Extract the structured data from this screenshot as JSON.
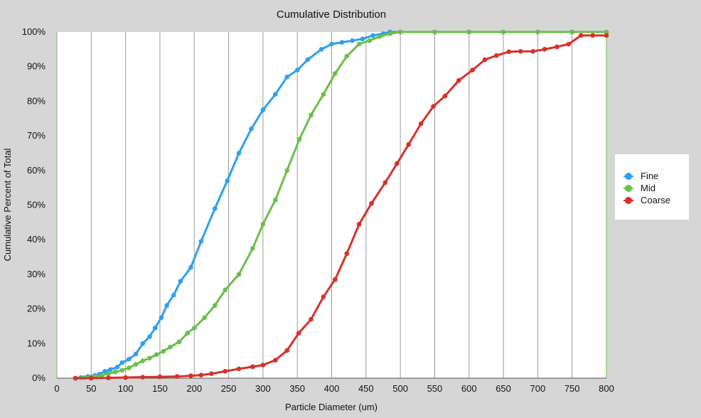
{
  "chart_data": {
    "type": "line",
    "title": "Cumulative Distribution",
    "xlabel": "Particle Diameter (um)",
    "ylabel": "Cumulative Percent of Total",
    "xlim": [
      0,
      800
    ],
    "ylim": [
      0,
      100
    ],
    "x_ticks": [
      0,
      50,
      100,
      150,
      200,
      250,
      300,
      350,
      400,
      450,
      500,
      550,
      600,
      650,
      700,
      750,
      800
    ],
    "y_ticks": [
      "0%",
      "10%",
      "20%",
      "30%",
      "40%",
      "50%",
      "60%",
      "70%",
      "80%",
      "90%",
      "100%"
    ],
    "grid": "vertical",
    "legend_position": "right",
    "series": [
      {
        "name": "Fine",
        "color": "#2f9ff0",
        "points": [
          [
            27,
            0
          ],
          [
            35,
            0.2
          ],
          [
            45,
            0.5
          ],
          [
            55,
            0.8
          ],
          [
            62,
            1.2
          ],
          [
            70,
            2
          ],
          [
            78,
            2.5
          ],
          [
            88,
            3.2
          ],
          [
            95,
            4.5
          ],
          [
            105,
            5.5
          ],
          [
            115,
            7
          ],
          [
            125,
            10
          ],
          [
            135,
            12
          ],
          [
            143,
            14.5
          ],
          [
            152,
            17.5
          ],
          [
            160,
            21
          ],
          [
            170,
            24
          ],
          [
            180,
            28
          ],
          [
            195,
            32
          ],
          [
            210,
            39.5
          ],
          [
            230,
            49
          ],
          [
            248,
            57
          ],
          [
            265,
            65
          ],
          [
            283,
            72
          ],
          [
            300,
            77.5
          ],
          [
            318,
            82
          ],
          [
            335,
            87
          ],
          [
            350,
            89
          ],
          [
            365,
            92
          ],
          [
            385,
            95
          ],
          [
            400,
            96.5
          ],
          [
            415,
            97
          ],
          [
            430,
            97.5
          ],
          [
            445,
            98
          ],
          [
            460,
            99
          ],
          [
            475,
            99.5
          ],
          [
            485,
            100
          ],
          [
            500,
            100
          ],
          [
            550,
            100
          ],
          [
            600,
            100
          ],
          [
            650,
            100
          ],
          [
            700,
            100
          ],
          [
            750,
            100
          ],
          [
            800,
            100
          ]
        ]
      },
      {
        "name": "Mid",
        "color": "#6bbf4a",
        "points": [
          [
            27,
            0
          ],
          [
            40,
            0.2
          ],
          [
            55,
            0.5
          ],
          [
            65,
            0.8
          ],
          [
            75,
            1.3
          ],
          [
            85,
            1.8
          ],
          [
            95,
            2.3
          ],
          [
            105,
            3
          ],
          [
            115,
            4
          ],
          [
            125,
            5
          ],
          [
            135,
            5.8
          ],
          [
            145,
            6.8
          ],
          [
            155,
            7.8
          ],
          [
            165,
            9
          ],
          [
            178,
            10.5
          ],
          [
            190,
            13
          ],
          [
            200,
            14.5
          ],
          [
            215,
            17.5
          ],
          [
            230,
            21
          ],
          [
            245,
            25.5
          ],
          [
            265,
            30
          ],
          [
            285,
            37.5
          ],
          [
            300,
            44.5
          ],
          [
            318,
            51.5
          ],
          [
            335,
            60
          ],
          [
            353,
            69
          ],
          [
            370,
            76
          ],
          [
            388,
            82
          ],
          [
            405,
            88
          ],
          [
            422,
            93
          ],
          [
            440,
            96.5
          ],
          [
            455,
            97.5
          ],
          [
            470,
            98.7
          ],
          [
            485,
            99.5
          ],
          [
            500,
            100
          ],
          [
            550,
            100
          ],
          [
            600,
            100
          ],
          [
            650,
            100
          ],
          [
            700,
            100
          ],
          [
            750,
            100
          ],
          [
            800,
            100
          ]
        ]
      },
      {
        "name": "Coarse",
        "color": "#d8302a",
        "points": [
          [
            27,
            0
          ],
          [
            50,
            0
          ],
          [
            75,
            0.1
          ],
          [
            100,
            0.2
          ],
          [
            125,
            0.3
          ],
          [
            150,
            0.4
          ],
          [
            175,
            0.5
          ],
          [
            195,
            0.7
          ],
          [
            210,
            0.9
          ],
          [
            225,
            1.3
          ],
          [
            245,
            2
          ],
          [
            265,
            2.7
          ],
          [
            285,
            3.3
          ],
          [
            300,
            3.8
          ],
          [
            318,
            5.2
          ],
          [
            335,
            8
          ],
          [
            352,
            13
          ],
          [
            370,
            17
          ],
          [
            388,
            23.5
          ],
          [
            405,
            28.5
          ],
          [
            422,
            36
          ],
          [
            440,
            44.5
          ],
          [
            458,
            50.5
          ],
          [
            478,
            56.5
          ],
          [
            495,
            62
          ],
          [
            512,
            67.5
          ],
          [
            530,
            73.5
          ],
          [
            548,
            78.5
          ],
          [
            565,
            81.5
          ],
          [
            585,
            86
          ],
          [
            605,
            89
          ],
          [
            623,
            92
          ],
          [
            640,
            93.2
          ],
          [
            658,
            94.3
          ],
          [
            675,
            94.4
          ],
          [
            693,
            94.4
          ],
          [
            710,
            95
          ],
          [
            728,
            95.7
          ],
          [
            745,
            96.5
          ],
          [
            763,
            99
          ],
          [
            780,
            99
          ],
          [
            800,
            99
          ]
        ]
      }
    ]
  }
}
